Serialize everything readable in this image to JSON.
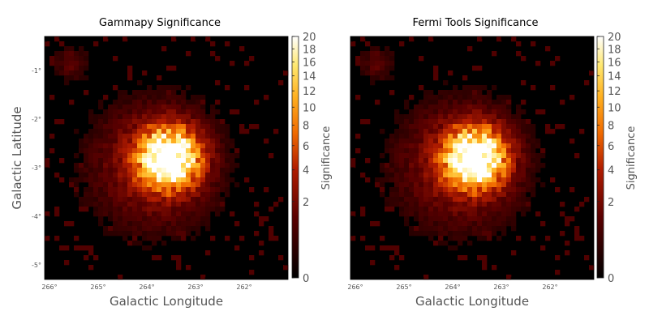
{
  "chart_data": [
    {
      "type": "heatmap",
      "title": "Gammapy Significance",
      "xlabel": "Galactic Longitude",
      "ylabel": "Galactic Latitude",
      "xlim": [
        266.1,
        261.1
      ],
      "ylim": [
        -5.3,
        -0.3
      ],
      "x_ticks": [
        266,
        265,
        264,
        263,
        262
      ],
      "x_tick_labels": [
        "266°",
        "265°",
        "264°",
        "263°",
        "262°"
      ],
      "y_ticks": [
        -1,
        -2,
        -3,
        -4,
        -5
      ],
      "y_tick_labels": [
        "-1°",
        "-2°",
        "-3°",
        "-4°",
        "-5°"
      ],
      "colorbar": {
        "label": "Significance",
        "colormap": "afmhot",
        "scale": "sqrt",
        "range": [
          0,
          20
        ],
        "ticks": [
          0,
          2,
          4,
          6,
          8,
          10,
          12,
          14,
          16,
          18,
          20
        ]
      },
      "grid": false,
      "pixel_size_deg": 0.1,
      "features": {
        "main_source": {
          "l": 263.55,
          "b": -2.8,
          "peak_significance": 20
        },
        "extended_emission_center": {
          "l": 263.85,
          "b": -2.95
        },
        "weak_blob": {
          "l": 265.55,
          "b": -0.85
        },
        "background": "near zero"
      }
    },
    {
      "type": "heatmap",
      "title": "Fermi Tools Significance",
      "xlabel": "Galactic Longitude",
      "ylabel": "",
      "xlim": [
        266.1,
        261.1
      ],
      "ylim": [
        -5.3,
        -0.3
      ],
      "x_ticks": [
        266,
        265,
        264,
        263,
        262
      ],
      "x_tick_labels": [
        "266°",
        "265°",
        "264°",
        "263°",
        "262°"
      ],
      "colorbar": {
        "label": "Significance",
        "colormap": "afmhot",
        "scale": "sqrt",
        "range": [
          0,
          20
        ],
        "ticks": [
          0,
          2,
          4,
          6,
          8,
          10,
          12,
          14,
          16,
          18,
          20
        ]
      },
      "grid": false,
      "pixel_size_deg": 0.1,
      "features": {
        "main_source": {
          "l": 263.55,
          "b": -2.8,
          "peak_significance": 20
        },
        "extended_emission_center": {
          "l": 263.85,
          "b": -2.95
        },
        "weak_blob": {
          "l": 265.55,
          "b": -0.85
        },
        "background": "near zero"
      }
    }
  ]
}
